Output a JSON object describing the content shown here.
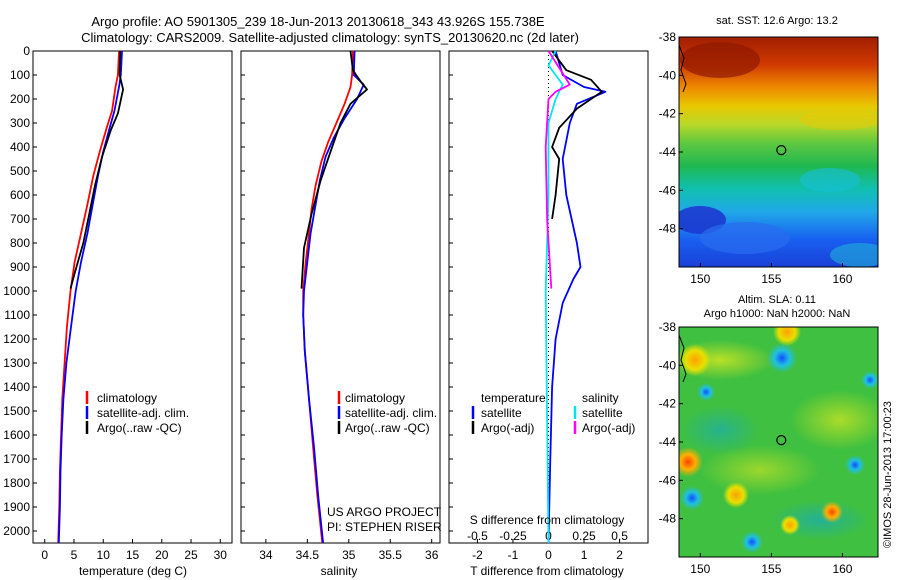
{
  "title_line1": "Argo profile: AO 5901305_239 18-Jun-2013 20130618_343 43.926S 155.738E",
  "title_line2": "Climatology: CARS2009. Satellite-adjusted climatology: synTS_20130620.nc (2d later)",
  "credit_line1": "US ARGO PROJECT",
  "credit_line2": "PI: STEPHEN RISER",
  "side_label": "©IMOS 28-Jun-2013 17:00:23",
  "colors": {
    "climatology": "#ff0000",
    "satellite": "#0000ff",
    "argo": "#000000",
    "satellite_salinity": "#00e5ee",
    "argo_salinity": "#ff00ff"
  },
  "chart_data": [
    {
      "type": "line",
      "xlabel": "temperature (deg C)",
      "ylabel": "",
      "xlim": [
        -2,
        32
      ],
      "ylim": [
        2050,
        0
      ],
      "xticks": [
        "0",
        "5",
        "10",
        "15",
        "20",
        "25",
        "30"
      ],
      "yticks": [
        "0",
        "100",
        "200",
        "300",
        "400",
        "500",
        "600",
        "700",
        "800",
        "900",
        "1000",
        "1100",
        "1200",
        "1300",
        "1400",
        "1500",
        "1600",
        "1700",
        "1800",
        "1900",
        "2000"
      ],
      "legend": [
        "climatology",
        "satellite-adj. clim.",
        "Argo(..raw -QC)"
      ],
      "legend_position": "lower-center",
      "series": [
        {
          "name": "climatology",
          "x": [
            12.7,
            12.5,
            12.1,
            11.5,
            10.6,
            9.4,
            8.3,
            7.3,
            6.2,
            5.1,
            4.4,
            3.8,
            3.4,
            3.0,
            2.8,
            2.6,
            2.5,
            2.3
          ],
          "y": [
            0,
            100,
            150,
            250,
            320,
            420,
            520,
            640,
            760,
            880,
            1000,
            1150,
            1300,
            1450,
            1600,
            1750,
            1900,
            2050
          ]
        },
        {
          "name": "satellite-adj. clim.",
          "x": [
            13.2,
            13.0,
            12.7,
            11.9,
            11.1,
            10.0,
            9.1,
            8.2,
            7.3,
            6.2,
            5.3,
            4.5,
            3.7,
            3.2,
            2.9,
            2.7,
            2.6,
            2.4
          ],
          "y": [
            0,
            100,
            150,
            250,
            320,
            420,
            520,
            640,
            760,
            880,
            1000,
            1150,
            1300,
            1450,
            1600,
            1750,
            1900,
            2050
          ]
        },
        {
          "name": "Argo(..raw -QC)",
          "x": [
            12.9,
            12.8,
            13.4,
            12.5,
            11.3,
            9.8,
            8.6,
            7.6,
            6.6,
            5.2,
            4.4
          ],
          "y": [
            0,
            100,
            160,
            260,
            330,
            440,
            560,
            680,
            800,
            920,
            990
          ]
        }
      ]
    },
    {
      "type": "line",
      "xlabel": "salinity",
      "xlim": [
        33.7,
        36.1
      ],
      "ylim": [
        2050,
        0
      ],
      "xticks": [
        "34",
        "34.5",
        "35",
        "35.5",
        "36"
      ],
      "legend": [
        "climatology",
        "satellite-adj. clim.",
        "Argo(..raw -QC)"
      ],
      "legend_position": "lower-right",
      "series": [
        {
          "name": "climatology",
          "x": [
            35.05,
            35.04,
            35.02,
            34.95,
            34.85,
            34.75,
            34.67,
            34.6,
            34.55,
            34.52,
            34.48,
            34.45,
            34.45,
            34.47,
            34.52,
            34.57,
            34.62,
            34.65,
            34.68
          ],
          "y": [
            0,
            100,
            150,
            220,
            300,
            380,
            460,
            560,
            660,
            760,
            880,
            1000,
            1100,
            1250,
            1450,
            1650,
            1850,
            1950,
            2050
          ]
        },
        {
          "name": "satellite-adj. clim.",
          "x": [
            35.07,
            35.06,
            35.18,
            35.1,
            34.95,
            34.82,
            34.72,
            34.65,
            34.6,
            34.54,
            34.5,
            34.46,
            34.45,
            34.47,
            34.52,
            34.58,
            34.63,
            34.66,
            34.69
          ],
          "y": [
            0,
            100,
            140,
            200,
            280,
            360,
            440,
            540,
            640,
            760,
            880,
            1000,
            1100,
            1250,
            1450,
            1650,
            1850,
            1950,
            2050
          ]
        },
        {
          "name": "Argo(..raw -QC)",
          "x": [
            35.02,
            35.05,
            35.15,
            35.22,
            35.02,
            34.9,
            34.78,
            34.66,
            34.55,
            34.46,
            34.43
          ],
          "y": [
            0,
            80,
            130,
            160,
            220,
            300,
            420,
            540,
            680,
            820,
            990
          ]
        }
      ]
    },
    {
      "type": "line",
      "xlabel": "T difference from climatology",
      "xlabel2": "S difference from climatology",
      "xlim": [
        -2.8,
        2.8
      ],
      "xlim2": [
        -0.7,
        0.7
      ],
      "ylim": [
        2050,
        0
      ],
      "xticks": [
        "-2",
        "-1",
        "0",
        "1",
        "2"
      ],
      "xticks2": [
        "-0.5",
        "-0.25",
        "0",
        "0.25",
        "0.5"
      ],
      "legend_headers": [
        "temperature",
        "salinity"
      ],
      "legend": [
        "satellite",
        "Argo(-adj)",
        "satellite",
        "Argo(-adj)"
      ],
      "legend_position": "lower-center",
      "series": [
        {
          "name": "satellite",
          "x": [
            0.2,
            0.4,
            1.0,
            1.6,
            0.8,
            0.6,
            0.4,
            0.5,
            0.8,
            0.9,
            0.7,
            0.4,
            0.2,
            0.1,
            0.05,
            0.0
          ],
          "y": [
            0,
            100,
            150,
            170,
            220,
            300,
            450,
            600,
            800,
            900,
            950,
            1050,
            1200,
            1400,
            1700,
            2050
          ]
        },
        {
          "name": "Argo(-adj)",
          "x": [
            0.1,
            0.5,
            1.2,
            1.5,
            0.8,
            0.3,
            0.1,
            0.3,
            0.2,
            0.1
          ],
          "y": [
            0,
            80,
            120,
            170,
            240,
            320,
            400,
            450,
            600,
            700
          ]
        },
        {
          "name": "satellite",
          "x": [
            0.05,
            0.0,
            0.1,
            0.05,
            0.0,
            0.0,
            -0.02,
            0.0
          ],
          "y": [
            0,
            60,
            140,
            200,
            300,
            600,
            1000,
            2050
          ]
        },
        {
          "name": "Argo(-adj)",
          "x": [
            0.0,
            0.15,
            0.05,
            0.0,
            -0.02,
            -0.01,
            0.02
          ],
          "y": [
            0,
            140,
            170,
            200,
            400,
            700,
            990
          ]
        }
      ]
    },
    {
      "type": "heatmap",
      "title": "sat. SST: 12.6  Argo: 13.2",
      "xlim": [
        148.5,
        162.5
      ],
      "ylim": [
        -50,
        -38
      ],
      "xticks": [
        "150",
        "155",
        "160"
      ],
      "yticks": [
        "-38",
        "-40",
        "-42",
        "-44",
        "-46",
        "-48"
      ],
      "marker": {
        "x": 155.7,
        "y": -43.9
      }
    },
    {
      "type": "heatmap",
      "title_line1": "Altim. SLA: 0.11",
      "title_line2": "Argo h1000: NaN  h2000: NaN",
      "xlim": [
        148.5,
        162.5
      ],
      "ylim": [
        -50,
        -38
      ],
      "xticks": [
        "150",
        "155",
        "160"
      ],
      "yticks": [
        "-38",
        "-40",
        "-42",
        "-44",
        "-46",
        "-48"
      ],
      "marker": {
        "x": 155.7,
        "y": -43.9
      }
    }
  ]
}
